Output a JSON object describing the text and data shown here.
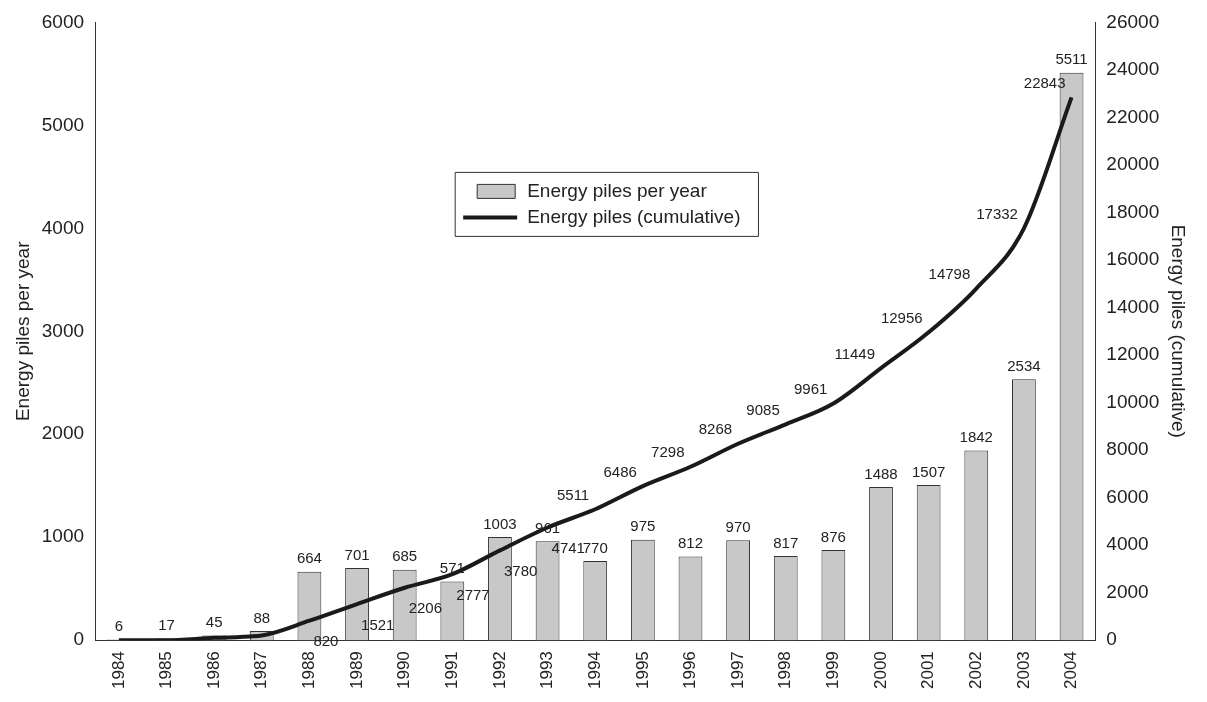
{
  "chart_data": {
    "type": "bar",
    "ylabel": "Energy piles per year",
    "y2label": "Energy piles (cumulative)",
    "categories": [
      "1984",
      "1985",
      "1986",
      "1987",
      "1988",
      "1989",
      "1990",
      "1991",
      "1992",
      "1993",
      "1994",
      "1995",
      "1996",
      "1997",
      "1998",
      "1999",
      "2000",
      "2001",
      "2002",
      "2003",
      "2004"
    ],
    "series": [
      {
        "name": "Energy piles per year",
        "color": "#c8c8c8",
        "values": [
          6,
          17,
          45,
          88,
          664,
          701,
          685,
          571,
          1003,
          961,
          770,
          975,
          812,
          970,
          817,
          876,
          1488,
          1507,
          1842,
          2534,
          5511
        ],
        "value_labels": [
          "6",
          "17",
          "45",
          "88",
          "664",
          "701",
          "685",
          "571",
          "1003",
          "961",
          "770",
          "975",
          "812",
          "970",
          "817",
          "876",
          "1488",
          "1507",
          "1842",
          "2534",
          "5511"
        ]
      },
      {
        "name": "Energy piles (cumulative)",
        "type": "line",
        "axis": "y2",
        "color": "#1a1a1a",
        "values": [
          0,
          0,
          100,
          200,
          820,
          1521,
          2206,
          2777,
          3780,
          4741,
          5511,
          6486,
          7298,
          8268,
          9085,
          9961,
          11449,
          12956,
          14798,
          17332,
          22843
        ],
        "value_labels": [
          null,
          null,
          null,
          null,
          "820",
          "1521",
          "2206",
          "2777",
          "3780",
          "4741",
          "5511",
          "6486",
          "7298",
          "8268",
          "9085",
          "9961",
          "11449",
          "12956",
          "14798",
          "17332",
          "22843"
        ]
      }
    ],
    "ylim": [
      0,
      6000
    ],
    "yticks": [
      0,
      1000,
      2000,
      3000,
      4000,
      5000,
      6000
    ],
    "y2lim": [
      0,
      26000
    ],
    "y2ticks": [
      0,
      2000,
      4000,
      6000,
      8000,
      10000,
      12000,
      14000,
      16000,
      18000,
      20000,
      22000,
      24000,
      26000
    ],
    "grid": false,
    "legend": "top",
    "marker": "none",
    "line_style": "solid"
  }
}
